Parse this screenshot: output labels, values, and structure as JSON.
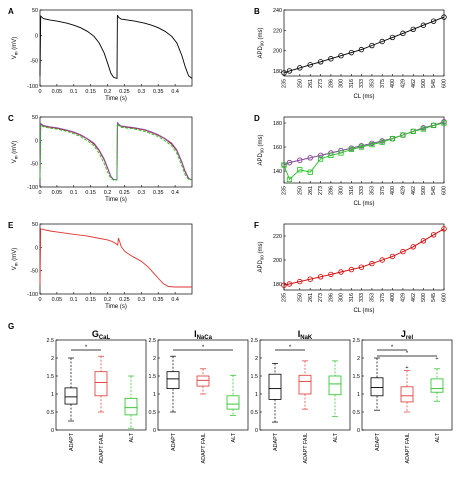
{
  "chart_data": [
    {
      "panel": "A",
      "type": "line",
      "xlabel": "Time (s)",
      "ylabel": "V_m (mV)",
      "xlim": [
        0,
        0.45
      ],
      "ylim": [
        -100,
        50
      ],
      "xticks": [
        0,
        0.05,
        0.1,
        0.15,
        0.2,
        0.25,
        0.3,
        0.35,
        0.4
      ],
      "xticklabels": [
        "0",
        "0.05",
        "0.1",
        "0.15",
        "0.2",
        "0.25",
        "0.3",
        "0.35",
        "0.4"
      ],
      "yticks": [
        -100,
        -50,
        0,
        50
      ],
      "yticklabels": [
        "-100",
        "-50",
        "0",
        "50"
      ],
      "series": [
        {
          "color": "#000000",
          "dash": false,
          "x": [
            0,
            0.002,
            0.01,
            0.03,
            0.05,
            0.08,
            0.1,
            0.12,
            0.14,
            0.16,
            0.175,
            0.19,
            0.2,
            0.21,
            0.218,
            0.228,
            0.229,
            0.232,
            0.24,
            0.26,
            0.28,
            0.31,
            0.33,
            0.35,
            0.37,
            0.39,
            0.405,
            0.42,
            0.43,
            0.44,
            0.45
          ],
          "y": [
            -80,
            38,
            33,
            30,
            28,
            24,
            20,
            15,
            8,
            -2,
            -15,
            -35,
            -55,
            -75,
            -83,
            -85,
            40,
            36,
            32,
            30,
            28,
            24,
            20,
            15,
            8,
            -2,
            -15,
            -40,
            -62,
            -80,
            -85
          ]
        }
      ]
    },
    {
      "panel": "B",
      "type": "line",
      "xlabel": "CL (ms)",
      "ylabel": "APD_90 (ms)",
      "ylim": [
        175,
        240
      ],
      "yticks": [
        180,
        200,
        220,
        240
      ],
      "yticklabels": [
        "180",
        "200",
        "220",
        "240"
      ],
      "categories": [
        "235",
        "250",
        "261",
        "273",
        "286",
        "300",
        "316",
        "333",
        "353",
        "375",
        "400",
        "429",
        "462",
        "500",
        "545",
        "600"
      ],
      "xticklabels": [
        "235",
        "250",
        "261",
        "273",
        "286",
        "300",
        "316",
        "333",
        "353",
        "375",
        "400",
        "429",
        "462",
        "500",
        "545",
        "600"
      ],
      "series": [
        {
          "color": "#000000",
          "marker": "circle",
          "x": [
            235,
            240,
            250,
            261,
            273,
            286,
            300,
            316,
            333,
            353,
            375,
            400,
            429,
            462,
            500,
            545,
            600
          ],
          "y": [
            178,
            180,
            183,
            186,
            189,
            192,
            195,
            198,
            201,
            205,
            209,
            213,
            217,
            221,
            225,
            229,
            233
          ]
        }
      ]
    },
    {
      "panel": "C",
      "type": "line",
      "xlabel": "Time (s)",
      "ylabel": "V_m (mV)",
      "xlim": [
        0,
        0.45
      ],
      "ylim": [
        -100,
        50
      ],
      "xticks": [
        0,
        0.05,
        0.1,
        0.15,
        0.2,
        0.25,
        0.3,
        0.35,
        0.4
      ],
      "xticklabels": [
        "0",
        "0.05",
        "0.1",
        "0.15",
        "0.2",
        "0.25",
        "0.3",
        "0.35",
        "0.4"
      ],
      "yticks": [
        -100,
        -50,
        0,
        50
      ],
      "yticklabels": [
        "-100",
        "-50",
        "0",
        "50"
      ],
      "series": [
        {
          "color": "#d40000",
          "dash": false,
          "x": [
            0,
            0.002,
            0.01,
            0.03,
            0.05,
            0.08,
            0.1,
            0.12,
            0.14,
            0.16,
            0.175,
            0.19,
            0.2,
            0.21,
            0.218,
            0.228,
            0.229,
            0.232,
            0.24,
            0.26,
            0.28,
            0.31,
            0.33,
            0.35,
            0.37,
            0.39,
            0.405,
            0.42,
            0.43,
            0.44,
            0.45
          ],
          "y": [
            -80,
            35,
            31,
            28,
            26,
            21,
            17,
            11,
            3,
            -8,
            -22,
            -42,
            -60,
            -78,
            -84,
            -85,
            38,
            34,
            30,
            28,
            26,
            22,
            17,
            11,
            3,
            -8,
            -22,
            -48,
            -68,
            -82,
            -85
          ]
        },
        {
          "color": "#7b5bb5",
          "dash": false,
          "x": [
            0,
            0.002,
            0.01,
            0.03,
            0.05,
            0.08,
            0.1,
            0.12,
            0.14,
            0.16,
            0.175,
            0.19,
            0.2,
            0.21,
            0.218,
            0.228,
            0.229,
            0.232,
            0.24,
            0.26,
            0.28,
            0.31,
            0.33,
            0.35,
            0.37,
            0.39,
            0.405,
            0.42,
            0.43,
            0.44,
            0.45
          ],
          "y": [
            -80,
            36,
            32,
            29,
            27,
            22,
            18,
            12,
            4,
            -6,
            -20,
            -40,
            -58,
            -77,
            -84,
            -85,
            39,
            35,
            31,
            29,
            27,
            23,
            18,
            12,
            4,
            -6,
            -20,
            -46,
            -66,
            -81,
            -85
          ]
        },
        {
          "color": "#22c222",
          "dash": true,
          "x": [
            0,
            0.002,
            0.01,
            0.03,
            0.05,
            0.08,
            0.1,
            0.12,
            0.14,
            0.16,
            0.175,
            0.19,
            0.2,
            0.21,
            0.218,
            0.228,
            0.229,
            0.232,
            0.24,
            0.26,
            0.28,
            0.31,
            0.33,
            0.35,
            0.37,
            0.39,
            0.405,
            0.42,
            0.43,
            0.44,
            0.45
          ],
          "y": [
            -80,
            33,
            29,
            26,
            24,
            19,
            14,
            8,
            -1,
            -12,
            -28,
            -50,
            -68,
            -82,
            -85,
            -85,
            36,
            32,
            28,
            26,
            24,
            19,
            14,
            8,
            -1,
            -12,
            -28,
            -55,
            -74,
            -84,
            -85
          ]
        }
      ]
    },
    {
      "panel": "D",
      "type": "line",
      "xlabel": "CL (ms)",
      "ylabel": "APD_90 (ms)",
      "ylim": [
        130,
        185
      ],
      "yticks": [
        140,
        160,
        180
      ],
      "yticklabels": [
        "140",
        "160",
        "180"
      ],
      "categories": [
        "235",
        "250",
        "261",
        "273",
        "286",
        "300",
        "316",
        "333",
        "353",
        "375",
        "400",
        "429",
        "462",
        "500",
        "545",
        "600"
      ],
      "xticklabels": [
        "235",
        "250",
        "261",
        "273",
        "286",
        "300",
        "316",
        "333",
        "353",
        "375",
        "400",
        "429",
        "462",
        "500",
        "545",
        "600"
      ],
      "series": [
        {
          "color": "#d40000",
          "marker": "circle",
          "x": [
            235,
            240,
            250,
            261,
            273,
            286,
            300,
            316,
            333,
            353,
            375,
            400,
            429,
            462,
            500,
            545,
            600
          ],
          "y": [
            145,
            147,
            149,
            151,
            153,
            155,
            157,
            159,
            161,
            163,
            165,
            167,
            170,
            173,
            176,
            178,
            181
          ]
        },
        {
          "color": "#7b5bb5",
          "marker": "circle",
          "x": [
            235,
            240,
            250,
            261,
            273,
            286,
            300,
            316,
            333,
            353,
            375,
            400,
            429,
            462,
            500,
            545,
            600
          ],
          "y": [
            145,
            147,
            149,
            151,
            153,
            155,
            157,
            159,
            161,
            163,
            165,
            167,
            170,
            173,
            176,
            178,
            181
          ]
        },
        {
          "color": "#22c222",
          "marker": "square",
          "x": [
            235,
            240,
            250,
            261,
            273,
            286,
            300,
            316,
            333,
            353,
            375,
            400,
            429,
            462,
            500,
            545,
            600
          ],
          "y": [
            145,
            133,
            141,
            139,
            150,
            153,
            155,
            158,
            160,
            162,
            164,
            167,
            170,
            173,
            175,
            178,
            180
          ]
        }
      ]
    },
    {
      "panel": "E",
      "type": "line",
      "xlabel": "Time (s)",
      "ylabel": "V_m (mV)",
      "xlim": [
        0,
        0.45
      ],
      "ylim": [
        -100,
        50
      ],
      "xticks": [
        0,
        0.05,
        0.1,
        0.15,
        0.2,
        0.25,
        0.3,
        0.35,
        0.4
      ],
      "xticklabels": [
        "0",
        "0.05",
        "0.1",
        "0.15",
        "0.2",
        "0.25",
        "0.3",
        "0.35",
        "0.4"
      ],
      "yticks": [
        -100,
        -50,
        0,
        50
      ],
      "yticklabels": [
        "-100",
        "-50",
        "0",
        "50"
      ],
      "series": [
        {
          "color": "#e0362f",
          "dash": false,
          "x": [
            0,
            0.002,
            0.01,
            0.03,
            0.06,
            0.1,
            0.14,
            0.17,
            0.2,
            0.215,
            0.225,
            0.23,
            0.232,
            0.235,
            0.24,
            0.25,
            0.27,
            0.3,
            0.32,
            0.34,
            0.355,
            0.365,
            0.38,
            0.4,
            0.45
          ],
          "y": [
            -80,
            40,
            38,
            35,
            32,
            28,
            24,
            20,
            16,
            12,
            8,
            5,
            20,
            14,
            2,
            -8,
            -18,
            -30,
            -42,
            -58,
            -70,
            -78,
            -84,
            -85,
            -85
          ]
        }
      ]
    },
    {
      "panel": "F",
      "type": "line",
      "xlabel": "CL (ms)",
      "ylabel": "APD_90 (ms)",
      "ylim": [
        175,
        230
      ],
      "yticks": [
        180,
        200,
        220
      ],
      "yticklabels": [
        "180",
        "200",
        "220"
      ],
      "categories": [
        "235",
        "250",
        "261",
        "273",
        "286",
        "300",
        "316",
        "333",
        "353",
        "375",
        "400",
        "429",
        "462",
        "500",
        "545",
        "600"
      ],
      "xticklabels": [
        "235",
        "250",
        "261",
        "273",
        "286",
        "300",
        "316",
        "333",
        "353",
        "375",
        "400",
        "429",
        "462",
        "500",
        "545",
        "600"
      ],
      "series": [
        {
          "color": "#d40000",
          "marker": "circle",
          "x": [
            235,
            240,
            250,
            261,
            273,
            286,
            300,
            316,
            333,
            353,
            375,
            400,
            429,
            462,
            500,
            545,
            600
          ],
          "y": [
            179,
            180,
            182,
            184,
            186,
            188,
            190,
            192,
            194,
            197,
            200,
            203,
            207,
            211,
            216,
            221,
            226
          ]
        }
      ]
    },
    {
      "panel": "G",
      "type": "box",
      "subplots": [
        {
          "title": "G",
          "title_sub": "CaL",
          "categories": [
            "ADAPT",
            "ADAPT FAIL",
            "ALT"
          ],
          "colors": [
            "#000000",
            "#e0362f",
            "#22c222"
          ],
          "ylim": [
            0,
            2.5
          ],
          "yticks": [
            0,
            0.5,
            1,
            1.5,
            2,
            2.5
          ],
          "yticklabels": [
            "0",
            "0.5",
            "1",
            "1.5",
            "2",
            "2.5"
          ],
          "boxes": [
            {
              "min": 0.25,
              "q1": 0.72,
              "median": 0.92,
              "q3": 1.17,
              "max": 2.0,
              "outliers": []
            },
            {
              "min": 0.5,
              "q1": 0.95,
              "median": 1.32,
              "q3": 1.62,
              "max": 2.05,
              "outliers": []
            },
            {
              "min": 0.05,
              "q1": 0.42,
              "median": 0.62,
              "q3": 0.88,
              "max": 1.5,
              "outliers": []
            }
          ],
          "significance": [
            {
              "from": 0,
              "to": 1,
              "label": "*"
            }
          ]
        },
        {
          "title": "I",
          "title_sub": "NaCa",
          "categories": [
            "ADAPT",
            "ADAPT FAIL",
            "ALT"
          ],
          "colors": [
            "#000000",
            "#e0362f",
            "#22c222"
          ],
          "ylim": [
            0,
            2.5
          ],
          "yticks": [
            0,
            0.5,
            1,
            1.5,
            2,
            2.5
          ],
          "yticklabels": [
            "0",
            "0.5",
            "1",
            "1.5",
            "2",
            "2.5"
          ],
          "boxes": [
            {
              "min": 0.5,
              "q1": 1.15,
              "median": 1.42,
              "q3": 1.62,
              "max": 2.05,
              "outliers": []
            },
            {
              "min": 1.0,
              "q1": 1.22,
              "median": 1.38,
              "q3": 1.5,
              "max": 1.7,
              "outliers": []
            },
            {
              "min": 0.4,
              "q1": 0.58,
              "median": 0.72,
              "q3": 0.95,
              "max": 1.52,
              "outliers": []
            }
          ],
          "significance": [
            {
              "from": 0,
              "to": 2,
              "label": "*"
            }
          ]
        },
        {
          "title": "I",
          "title_sub": "NaK",
          "categories": [
            "ADAPT",
            "ADAPT FAIL",
            "ALT"
          ],
          "colors": [
            "#000000",
            "#e0362f",
            "#22c222"
          ],
          "ylim": [
            0,
            2.5
          ],
          "yticks": [
            0,
            0.5,
            1,
            1.5,
            2,
            2.5
          ],
          "yticklabels": [
            "0",
            "0.5",
            "1",
            "1.5",
            "2",
            "2.5"
          ],
          "boxes": [
            {
              "min": 0.22,
              "q1": 0.85,
              "median": 1.15,
              "q3": 1.55,
              "max": 1.85,
              "outliers": []
            },
            {
              "min": 0.58,
              "q1": 1.0,
              "median": 1.35,
              "q3": 1.52,
              "max": 1.92,
              "outliers": []
            },
            {
              "min": 0.38,
              "q1": 0.98,
              "median": 1.28,
              "q3": 1.5,
              "max": 1.92,
              "outliers": []
            }
          ],
          "significance": [
            {
              "from": 0,
              "to": 1,
              "label": "*"
            }
          ]
        },
        {
          "title": "J",
          "title_sub": "rel",
          "categories": [
            "ADAPT",
            "ADAPT FAIL",
            "ALT"
          ],
          "colors": [
            "#000000",
            "#e0362f",
            "#22c222"
          ],
          "ylim": [
            0,
            2.5
          ],
          "yticks": [
            0,
            0.5,
            1,
            1.5,
            2,
            2.5
          ],
          "yticklabels": [
            "0",
            "0.5",
            "1",
            "1.5",
            "2",
            "2.5"
          ],
          "boxes": [
            {
              "min": 0.55,
              "q1": 0.95,
              "median": 1.18,
              "q3": 1.45,
              "max": 2.0,
              "outliers": []
            },
            {
              "min": 0.5,
              "q1": 0.78,
              "median": 0.95,
              "q3": 1.2,
              "max": 1.65,
              "outliers": [
                1.75
              ]
            },
            {
              "min": 0.8,
              "q1": 1.05,
              "median": 1.15,
              "q3": 1.42,
              "max": 1.7,
              "outliers": [
                2.0
              ]
            }
          ],
          "significance": [
            {
              "from": 0,
              "to": 1,
              "label": "*"
            },
            {
              "from": 0,
              "to": 2,
              "label": "*"
            }
          ]
        }
      ]
    }
  ]
}
